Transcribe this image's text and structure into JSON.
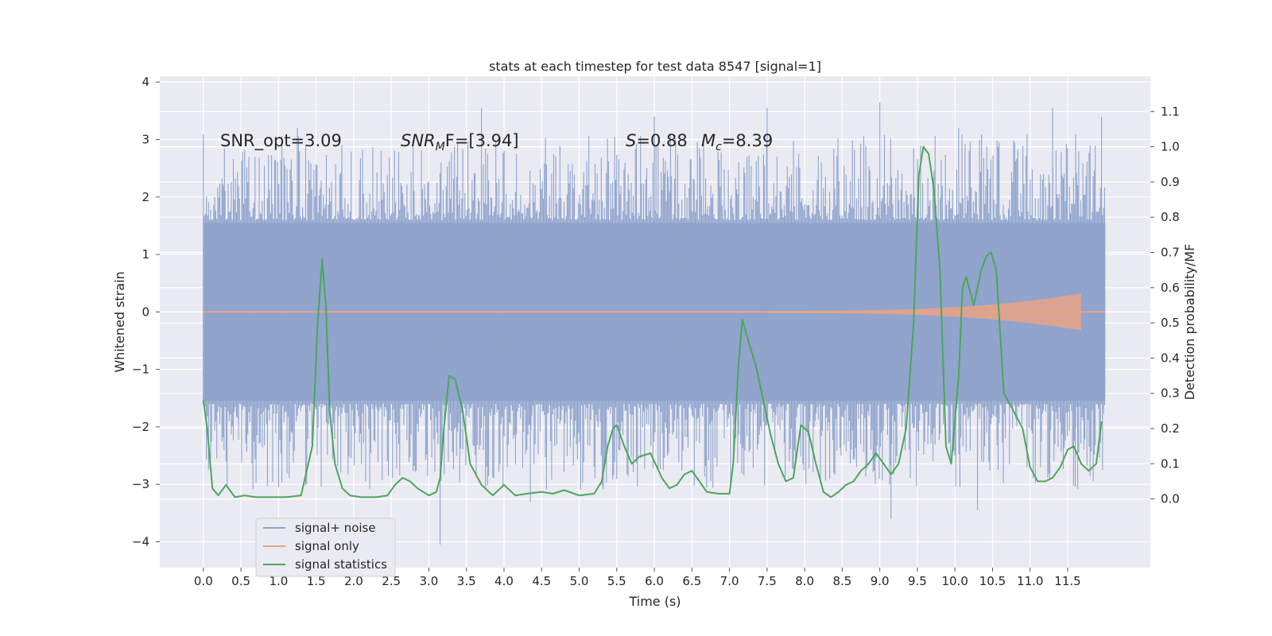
{
  "chart_data": {
    "type": "line",
    "title": "stats at each timestep for test data 8547 [signal=1]",
    "xlabel": "Time (s)",
    "ylabel_left": "Whitened strain",
    "ylabel_right": "Detection probability/MF",
    "x_ticks": [
      "0.0",
      "0.5",
      "1.0",
      "1.5",
      "2.0",
      "2.5",
      "3.0",
      "3.5",
      "4.0",
      "4.5",
      "5.0",
      "5.5",
      "6.0",
      "6.5",
      "7.0",
      "7.5",
      "8.0",
      "8.5",
      "9.0",
      "9.5",
      "10.0",
      "10.5",
      "11.0",
      "11.5"
    ],
    "y_left_ticks": [
      "4",
      "3",
      "2",
      "1",
      "0",
      "−1",
      "−2",
      "−3",
      "−4"
    ],
    "y_right_ticks": [
      "1.1",
      "1.0",
      "0.9",
      "0.8",
      "0.7",
      "0.6",
      "0.5",
      "0.4",
      "0.3",
      "0.2",
      "0.1",
      "0.0"
    ],
    "xlim": [
      -0.58,
      12.6
    ],
    "ylim_left": [
      -4.45,
      4.1
    ],
    "ylim_right": [
      -0.195,
      1.2
    ],
    "grid": true,
    "legend_position": "lower-left",
    "annotations": {
      "snr_opt": "SNR_opt=3.09",
      "snr_mf_main": "SNR",
      "snr_mf_sub": "M",
      "snr_mf_rest": "F=[3.94]",
      "s_main": "S",
      "s_rest": "=0.88",
      "mc_main": "M",
      "mc_sub": "c",
      "mc_rest": "=8.39"
    },
    "series": [
      {
        "name": "signal+ noise",
        "color": "#8fa3cc",
        "description": "noise envelope",
        "duration": [
          0,
          12.0
        ],
        "envelope_upper": 1.55,
        "envelope_lower": -1.55,
        "peaks_upper": [
          2.85,
          3.2,
          3.55,
          3.4,
          3.55,
          3.65
        ],
        "peaks_lower": [
          -3.05,
          -4.05,
          -3.3,
          -3.6,
          -3.45
        ]
      },
      {
        "name": "signal only",
        "color": "#e8a385",
        "chirp_end": 11.68,
        "chirp_peak_amplitude": [
          0.35,
          -0.5
        ]
      },
      {
        "name": "signal statistics",
        "color": "#4da65a",
        "x": [
          0.0,
          0.05,
          0.12,
          0.2,
          0.3,
          0.42,
          0.55,
          0.7,
          0.9,
          1.1,
          1.3,
          1.45,
          1.52,
          1.58,
          1.63,
          1.68,
          1.75,
          1.85,
          1.95,
          2.1,
          2.3,
          2.45,
          2.55,
          2.65,
          2.75,
          2.85,
          3.0,
          3.1,
          3.15,
          3.2,
          3.27,
          3.35,
          3.45,
          3.55,
          3.7,
          3.85,
          4.0,
          4.15,
          4.3,
          4.5,
          4.65,
          4.8,
          5.0,
          5.2,
          5.3,
          5.38,
          5.45,
          5.5,
          5.6,
          5.7,
          5.8,
          5.95,
          6.1,
          6.2,
          6.3,
          6.4,
          6.5,
          6.6,
          6.7,
          6.85,
          7.0,
          7.05,
          7.12,
          7.17,
          7.25,
          7.35,
          7.45,
          7.55,
          7.65,
          7.75,
          7.85,
          7.95,
          8.05,
          8.15,
          8.25,
          8.35,
          8.45,
          8.55,
          8.65,
          8.75,
          8.85,
          8.95,
          9.05,
          9.15,
          9.25,
          9.35,
          9.45,
          9.52,
          9.58,
          9.65,
          9.72,
          9.8,
          9.88,
          9.95,
          10.05,
          10.1,
          10.15,
          10.25,
          10.35,
          10.42,
          10.48,
          10.55,
          10.65,
          10.78,
          10.9,
          11.0,
          11.1,
          11.2,
          11.3,
          11.4,
          11.5,
          11.58,
          11.68,
          11.78,
          11.88,
          11.95
        ],
        "values": [
          0.28,
          0.2,
          0.03,
          0.01,
          0.04,
          0.005,
          0.01,
          0.005,
          0.005,
          0.005,
          0.01,
          0.15,
          0.5,
          0.68,
          0.55,
          0.25,
          0.1,
          0.03,
          0.01,
          0.005,
          0.005,
          0.01,
          0.04,
          0.06,
          0.05,
          0.03,
          0.01,
          0.02,
          0.06,
          0.2,
          0.35,
          0.34,
          0.25,
          0.1,
          0.04,
          0.01,
          0.04,
          0.01,
          0.015,
          0.02,
          0.015,
          0.025,
          0.01,
          0.015,
          0.05,
          0.15,
          0.2,
          0.21,
          0.15,
          0.1,
          0.12,
          0.13,
          0.06,
          0.03,
          0.04,
          0.07,
          0.08,
          0.05,
          0.02,
          0.015,
          0.015,
          0.1,
          0.38,
          0.51,
          0.45,
          0.38,
          0.28,
          0.18,
          0.1,
          0.05,
          0.06,
          0.21,
          0.19,
          0.1,
          0.02,
          0.005,
          0.02,
          0.04,
          0.05,
          0.08,
          0.1,
          0.13,
          0.1,
          0.07,
          0.1,
          0.2,
          0.5,
          0.92,
          1.0,
          0.98,
          0.88,
          0.65,
          0.15,
          0.1,
          0.35,
          0.6,
          0.63,
          0.55,
          0.65,
          0.69,
          0.7,
          0.65,
          0.3,
          0.25,
          0.2,
          0.09,
          0.05,
          0.05,
          0.06,
          0.09,
          0.14,
          0.15,
          0.1,
          0.08,
          0.1,
          0.22
        ]
      }
    ]
  }
}
